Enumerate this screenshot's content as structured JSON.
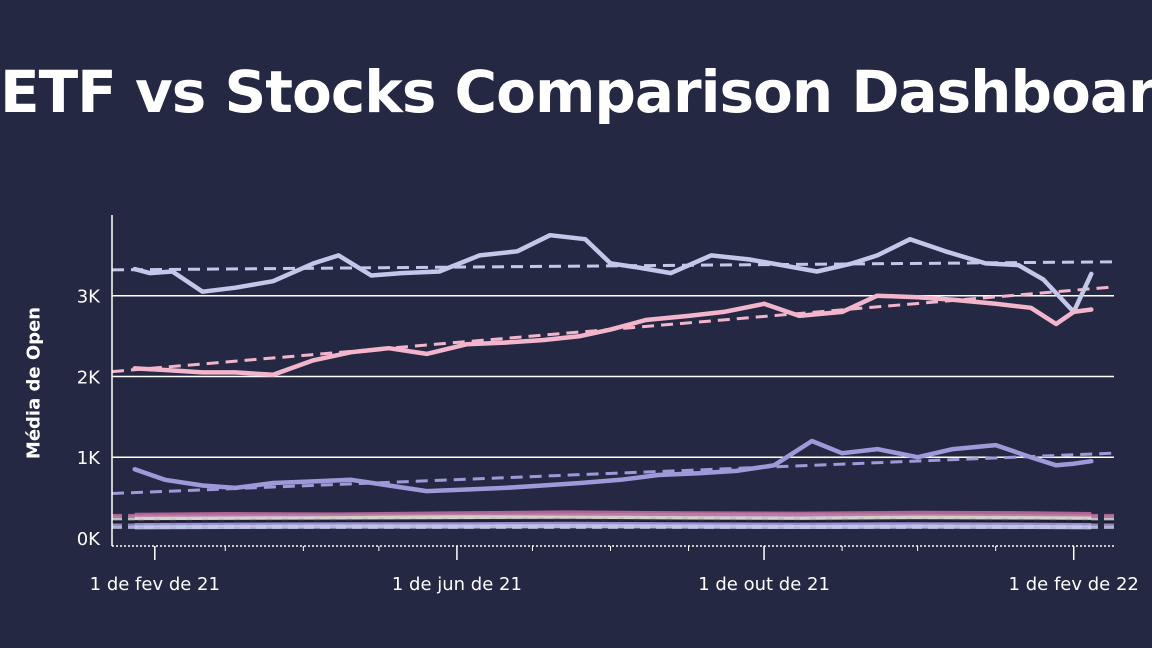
{
  "title": "ETF vs Stocks Comparison Dashboard",
  "colors": {
    "background": "#242842",
    "series_lavender_light": "#c4c6ea",
    "series_pink": "#f3b5cc",
    "series_purple": "#9e99d8",
    "grid": "#ffffff"
  },
  "chart_data": {
    "type": "line",
    "xlabel": "",
    "ylabel": "Média de Open",
    "x_ticks": [
      "1 de fev de 21",
      "1 de jun de 21",
      "1 de out de 21",
      "1 de fev de 22"
    ],
    "y_ticks": [
      "0K",
      "1K",
      "2K",
      "3K"
    ],
    "ylim": [
      -100,
      4000
    ],
    "grid": "horizontal",
    "trendlines": "dashed",
    "series": [
      {
        "color": "#c4c6ea",
        "dates": [
          "2021-01-24",
          "2021-01-30",
          "2021-02-08",
          "2021-02-20",
          "2021-03-05",
          "2021-03-20",
          "2021-04-05",
          "2021-04-15",
          "2021-04-28",
          "2021-05-10",
          "2021-05-25",
          "2021-06-10",
          "2021-06-25",
          "2021-07-08",
          "2021-07-22",
          "2021-08-01",
          "2021-08-12",
          "2021-08-25",
          "2021-09-10",
          "2021-09-25",
          "2021-10-08",
          "2021-10-22",
          "2021-11-05",
          "2021-11-15",
          "2021-11-28",
          "2021-12-12",
          "2021-12-28",
          "2022-01-10",
          "2022-01-20",
          "2022-02-01",
          "2022-02-08"
        ],
        "values": [
          3330,
          3280,
          3300,
          3050,
          3100,
          3180,
          3400,
          3500,
          3250,
          3280,
          3300,
          3500,
          3550,
          3750,
          3700,
          3400,
          3350,
          3280,
          3500,
          3450,
          3380,
          3300,
          3400,
          3500,
          3700,
          3550,
          3400,
          3380,
          3200,
          2800,
          3270
        ],
        "trend": [
          3320,
          3420
        ]
      },
      {
        "color": "#f3b5cc",
        "dates": [
          "2021-01-24",
          "2021-02-05",
          "2021-02-20",
          "2021-03-05",
          "2021-03-20",
          "2021-04-05",
          "2021-04-20",
          "2021-05-05",
          "2021-05-20",
          "2021-06-05",
          "2021-06-20",
          "2021-07-05",
          "2021-07-20",
          "2021-08-01",
          "2021-08-15",
          "2021-09-01",
          "2021-09-15",
          "2021-10-01",
          "2021-10-15",
          "2021-11-01",
          "2021-11-15",
          "2021-12-01",
          "2021-12-15",
          "2022-01-01",
          "2022-01-15",
          "2022-01-25",
          "2022-02-01",
          "2022-02-08"
        ],
        "values": [
          2100,
          2080,
          2050,
          2050,
          2020,
          2200,
          2300,
          2350,
          2280,
          2400,
          2420,
          2450,
          2500,
          2580,
          2700,
          2750,
          2800,
          2900,
          2750,
          2800,
          3000,
          2980,
          2950,
          2900,
          2850,
          2650,
          2800,
          2830
        ],
        "trend": [
          2060,
          3110
        ]
      },
      {
        "color": "#9e99d8",
        "dates": [
          "2021-01-24",
          "2021-02-05",
          "2021-02-20",
          "2021-03-05",
          "2021-03-20",
          "2021-04-05",
          "2021-04-20",
          "2021-05-05",
          "2021-05-20",
          "2021-06-05",
          "2021-06-20",
          "2021-07-05",
          "2021-07-20",
          "2021-08-05",
          "2021-08-20",
          "2021-09-05",
          "2021-09-20",
          "2021-10-05",
          "2021-10-20",
          "2021-11-01",
          "2021-11-15",
          "2021-12-01",
          "2021-12-15",
          "2022-01-01",
          "2022-01-15",
          "2022-01-25",
          "2022-02-01",
          "2022-02-08"
        ],
        "values": [
          850,
          720,
          650,
          620,
          680,
          700,
          720,
          650,
          580,
          600,
          620,
          650,
          680,
          720,
          780,
          800,
          830,
          900,
          1200,
          1050,
          1100,
          1000,
          1100,
          1150,
          1000,
          900,
          920,
          950
        ],
        "trend": [
          550,
          1050
        ]
      }
    ],
    "low_series_band": {
      "approx_range": [
        120,
        300
      ],
      "colors": [
        "#c06a9a",
        "#b87fa8",
        "#9e99d8",
        "#d8d5d0",
        "#1c1c30",
        "#f3b5cc",
        "#c4c6ea"
      ]
    }
  }
}
